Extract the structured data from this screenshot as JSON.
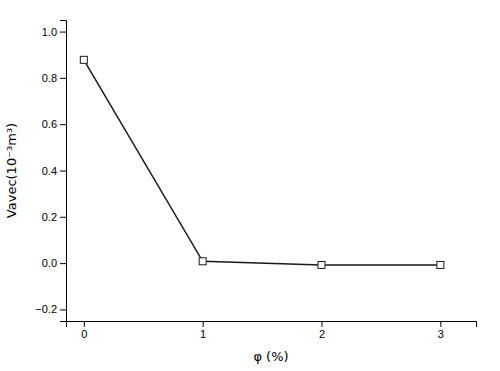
{
  "chart_data": {
    "type": "line",
    "x": [
      0,
      1,
      2,
      3
    ],
    "values": [
      0.878,
      0.008,
      -0.008,
      -0.008
    ],
    "xlabel": "φ (%)",
    "ylabel": "Vavec(10⁻³m³)",
    "xlim": [
      -0.15,
      3.3
    ],
    "ylim": [
      -0.25,
      1.05
    ],
    "xticks": [
      0,
      1,
      2,
      3
    ],
    "yticks": [
      {
        "value": -0.2,
        "label": "−0.2"
      },
      {
        "value": 0.0,
        "label": "0.0"
      },
      0.2,
      0.4,
      0.6,
      0.8,
      {
        "value": 1.0,
        "label": "1.0"
      }
    ],
    "color": "#1a1a1a",
    "marker": "square",
    "grid": false
  }
}
